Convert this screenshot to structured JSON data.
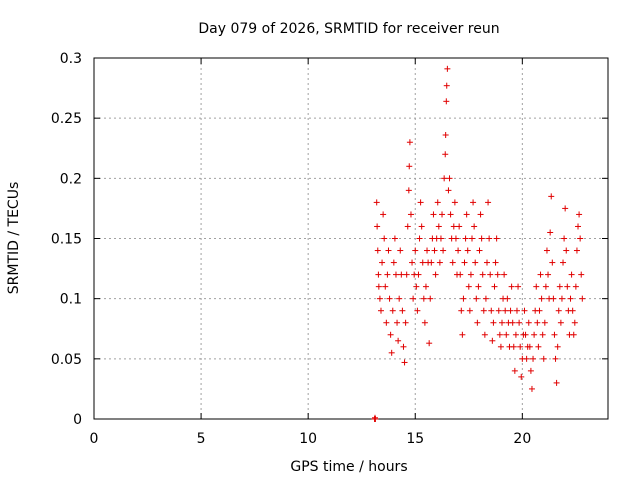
{
  "chart_data": {
    "type": "scatter",
    "title": "Day 079 of 2026, SRMTID for receiver reun",
    "xlabel": "GPS time / hours",
    "ylabel": "SRMTID / TECUs",
    "xlim": [
      0,
      24
    ],
    "ylim": [
      0,
      0.3
    ],
    "xticks": [
      0,
      5,
      10,
      15,
      20
    ],
    "yticks": [
      0,
      0.05,
      0.1,
      0.15,
      0.2,
      0.25,
      0.3
    ],
    "xtick_labels": [
      "0",
      "5",
      "10",
      "15",
      "20"
    ],
    "ytick_labels": [
      "0",
      "0.05",
      "0.1",
      "0.15",
      "0.2",
      "0.25",
      "0.3"
    ],
    "grid": true,
    "marker": "+",
    "color": "#e00000",
    "series": [
      {
        "name": "SRMTID",
        "points": [
          [
            13.1,
            0.0
          ],
          [
            13.12,
            0.001
          ],
          [
            13.14,
            0.0
          ],
          [
            13.2,
            0.18
          ],
          [
            13.22,
            0.16
          ],
          [
            13.25,
            0.14
          ],
          [
            13.28,
            0.12
          ],
          [
            13.3,
            0.11
          ],
          [
            13.35,
            0.1
          ],
          [
            13.4,
            0.09
          ],
          [
            13.45,
            0.13
          ],
          [
            13.5,
            0.17
          ],
          [
            13.55,
            0.15
          ],
          [
            13.6,
            0.11
          ],
          [
            13.65,
            0.08
          ],
          [
            13.7,
            0.12
          ],
          [
            13.75,
            0.14
          ],
          [
            13.8,
            0.1
          ],
          [
            13.85,
            0.07
          ],
          [
            13.9,
            0.055
          ],
          [
            13.95,
            0.09
          ],
          [
            14.0,
            0.13
          ],
          [
            14.05,
            0.15
          ],
          [
            14.1,
            0.12
          ],
          [
            14.15,
            0.08
          ],
          [
            14.2,
            0.065
          ],
          [
            14.25,
            0.1
          ],
          [
            14.3,
            0.14
          ],
          [
            14.35,
            0.12
          ],
          [
            14.4,
            0.09
          ],
          [
            14.45,
            0.06
          ],
          [
            14.5,
            0.047
          ],
          [
            14.55,
            0.08
          ],
          [
            14.6,
            0.12
          ],
          [
            14.65,
            0.16
          ],
          [
            14.7,
            0.19
          ],
          [
            14.72,
            0.21
          ],
          [
            14.75,
            0.23
          ],
          [
            14.8,
            0.17
          ],
          [
            14.85,
            0.13
          ],
          [
            14.9,
            0.1
          ],
          [
            14.95,
            0.12
          ],
          [
            15.0,
            0.14
          ],
          [
            15.05,
            0.11
          ],
          [
            15.1,
            0.09
          ],
          [
            15.15,
            0.12
          ],
          [
            15.2,
            0.15
          ],
          [
            15.25,
            0.18
          ],
          [
            15.3,
            0.16
          ],
          [
            15.35,
            0.13
          ],
          [
            15.4,
            0.1
          ],
          [
            15.45,
            0.08
          ],
          [
            15.5,
            0.11
          ],
          [
            15.55,
            0.14
          ],
          [
            15.6,
            0.13
          ],
          [
            15.65,
            0.063
          ],
          [
            15.7,
            0.1
          ],
          [
            15.75,
            0.13
          ],
          [
            15.8,
            0.15
          ],
          [
            15.85,
            0.17
          ],
          [
            15.9,
            0.14
          ],
          [
            15.95,
            0.12
          ],
          [
            16.0,
            0.15
          ],
          [
            16.05,
            0.18
          ],
          [
            16.1,
            0.16
          ],
          [
            16.15,
            0.13
          ],
          [
            16.2,
            0.15
          ],
          [
            16.25,
            0.17
          ],
          [
            16.3,
            0.14
          ],
          [
            16.35,
            0.2
          ],
          [
            16.4,
            0.22
          ],
          [
            16.42,
            0.236
          ],
          [
            16.45,
            0.264
          ],
          [
            16.47,
            0.277
          ],
          [
            16.5,
            0.291
          ],
          [
            16.55,
            0.19
          ],
          [
            16.6,
            0.2
          ],
          [
            16.65,
            0.17
          ],
          [
            16.7,
            0.15
          ],
          [
            16.75,
            0.13
          ],
          [
            16.8,
            0.16
          ],
          [
            16.85,
            0.18
          ],
          [
            16.9,
            0.15
          ],
          [
            16.95,
            0.12
          ],
          [
            17.0,
            0.14
          ],
          [
            17.05,
            0.16
          ],
          [
            17.1,
            0.12
          ],
          [
            17.15,
            0.09
          ],
          [
            17.2,
            0.07
          ],
          [
            17.25,
            0.1
          ],
          [
            17.3,
            0.13
          ],
          [
            17.35,
            0.15
          ],
          [
            17.4,
            0.17
          ],
          [
            17.45,
            0.14
          ],
          [
            17.5,
            0.11
          ],
          [
            17.55,
            0.09
          ],
          [
            17.6,
            0.12
          ],
          [
            17.65,
            0.15
          ],
          [
            17.7,
            0.18
          ],
          [
            17.75,
            0.16
          ],
          [
            17.8,
            0.13
          ],
          [
            17.85,
            0.1
          ],
          [
            17.9,
            0.08
          ],
          [
            17.95,
            0.11
          ],
          [
            18.0,
            0.14
          ],
          [
            18.05,
            0.17
          ],
          [
            18.1,
            0.15
          ],
          [
            18.15,
            0.12
          ],
          [
            18.2,
            0.09
          ],
          [
            18.25,
            0.07
          ],
          [
            18.3,
            0.1
          ],
          [
            18.35,
            0.13
          ],
          [
            18.4,
            0.18
          ],
          [
            18.45,
            0.15
          ],
          [
            18.5,
            0.12
          ],
          [
            18.55,
            0.09
          ],
          [
            18.6,
            0.065
          ],
          [
            18.65,
            0.08
          ],
          [
            18.7,
            0.11
          ],
          [
            18.75,
            0.13
          ],
          [
            18.8,
            0.15
          ],
          [
            18.85,
            0.12
          ],
          [
            18.9,
            0.09
          ],
          [
            18.95,
            0.07
          ],
          [
            19.0,
            0.06
          ],
          [
            19.05,
            0.08
          ],
          [
            19.1,
            0.1
          ],
          [
            19.15,
            0.12
          ],
          [
            19.2,
            0.09
          ],
          [
            19.25,
            0.07
          ],
          [
            19.3,
            0.1
          ],
          [
            19.35,
            0.08
          ],
          [
            19.4,
            0.06
          ],
          [
            19.45,
            0.09
          ],
          [
            19.5,
            0.11
          ],
          [
            19.55,
            0.08
          ],
          [
            19.6,
            0.06
          ],
          [
            19.65,
            0.04
          ],
          [
            19.7,
            0.07
          ],
          [
            19.75,
            0.09
          ],
          [
            19.8,
            0.11
          ],
          [
            19.85,
            0.08
          ],
          [
            19.9,
            0.06
          ],
          [
            19.95,
            0.035
          ],
          [
            20.0,
            0.05
          ],
          [
            20.05,
            0.07
          ],
          [
            20.1,
            0.09
          ],
          [
            20.15,
            0.07
          ],
          [
            20.2,
            0.05
          ],
          [
            20.25,
            0.06
          ],
          [
            20.3,
            0.08
          ],
          [
            20.35,
            0.06
          ],
          [
            20.4,
            0.04
          ],
          [
            20.45,
            0.025
          ],
          [
            20.5,
            0.05
          ],
          [
            20.55,
            0.07
          ],
          [
            20.6,
            0.09
          ],
          [
            20.65,
            0.11
          ],
          [
            20.7,
            0.08
          ],
          [
            20.75,
            0.06
          ],
          [
            20.8,
            0.09
          ],
          [
            20.85,
            0.12
          ],
          [
            20.9,
            0.1
          ],
          [
            20.95,
            0.07
          ],
          [
            21.0,
            0.05
          ],
          [
            21.05,
            0.08
          ],
          [
            21.1,
            0.11
          ],
          [
            21.15,
            0.14
          ],
          [
            21.2,
            0.12
          ],
          [
            21.25,
            0.1
          ],
          [
            21.3,
            0.155
          ],
          [
            21.35,
            0.185
          ],
          [
            21.4,
            0.13
          ],
          [
            21.45,
            0.1
          ],
          [
            21.5,
            0.07
          ],
          [
            21.55,
            0.05
          ],
          [
            21.6,
            0.03
          ],
          [
            21.65,
            0.06
          ],
          [
            21.7,
            0.09
          ],
          [
            21.75,
            0.11
          ],
          [
            21.8,
            0.08
          ],
          [
            21.85,
            0.1
          ],
          [
            21.9,
            0.13
          ],
          [
            21.95,
            0.15
          ],
          [
            22.0,
            0.175
          ],
          [
            22.05,
            0.14
          ],
          [
            22.1,
            0.11
          ],
          [
            22.15,
            0.09
          ],
          [
            22.2,
            0.07
          ],
          [
            22.25,
            0.1
          ],
          [
            22.3,
            0.12
          ],
          [
            22.35,
            0.09
          ],
          [
            22.4,
            0.07
          ],
          [
            22.45,
            0.08
          ],
          [
            22.5,
            0.11
          ],
          [
            22.55,
            0.14
          ],
          [
            22.6,
            0.16
          ],
          [
            22.65,
            0.17
          ],
          [
            22.7,
            0.15
          ],
          [
            22.75,
            0.12
          ],
          [
            22.8,
            0.1
          ]
        ]
      }
    ]
  }
}
